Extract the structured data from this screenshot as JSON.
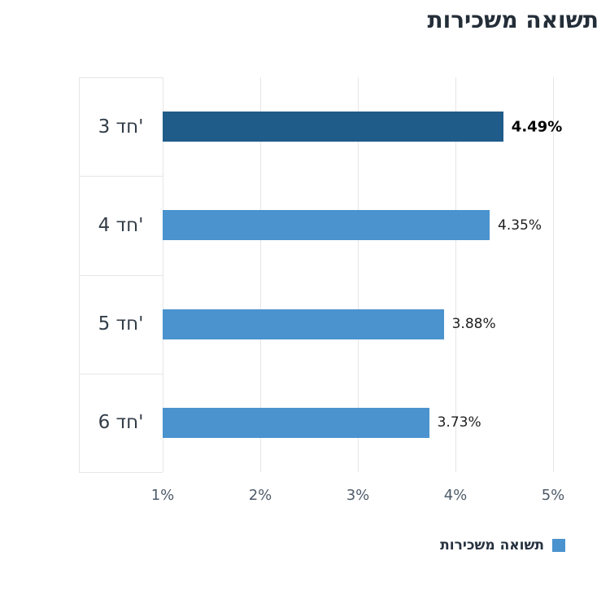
{
  "chart_data": {
    "type": "bar",
    "orientation": "horizontal",
    "title": "תשואה משכירות",
    "categories": [
      "3 חד'",
      "4 חד'",
      "5 חד'",
      "6 חד'"
    ],
    "values": [
      4.49,
      4.35,
      3.88,
      3.73
    ],
    "value_labels": [
      "4.49%",
      "4.35%",
      "3.88%",
      "3.73%"
    ],
    "highlight_index": 0,
    "x_ticks": [
      "1%",
      "2%",
      "3%",
      "4%",
      "5%"
    ],
    "x_tick_values": [
      1,
      2,
      3,
      4,
      5
    ],
    "xlim": [
      1,
      5
    ],
    "xlabel": "",
    "ylabel": "",
    "grid": true,
    "bar_colors": [
      "#1f5c8a",
      "#4a93ce",
      "#4a93ce",
      "#4a93ce"
    ],
    "legend": {
      "label": "תשואה משכירות",
      "color": "#4a93ce",
      "position": "bottom-right"
    },
    "colors": {
      "grid": "#e6e6e6",
      "title": "#242e39",
      "tick_label": "#4e5b69",
      "category_label": "#333d48",
      "value_label": "#1f1f1f"
    }
  }
}
